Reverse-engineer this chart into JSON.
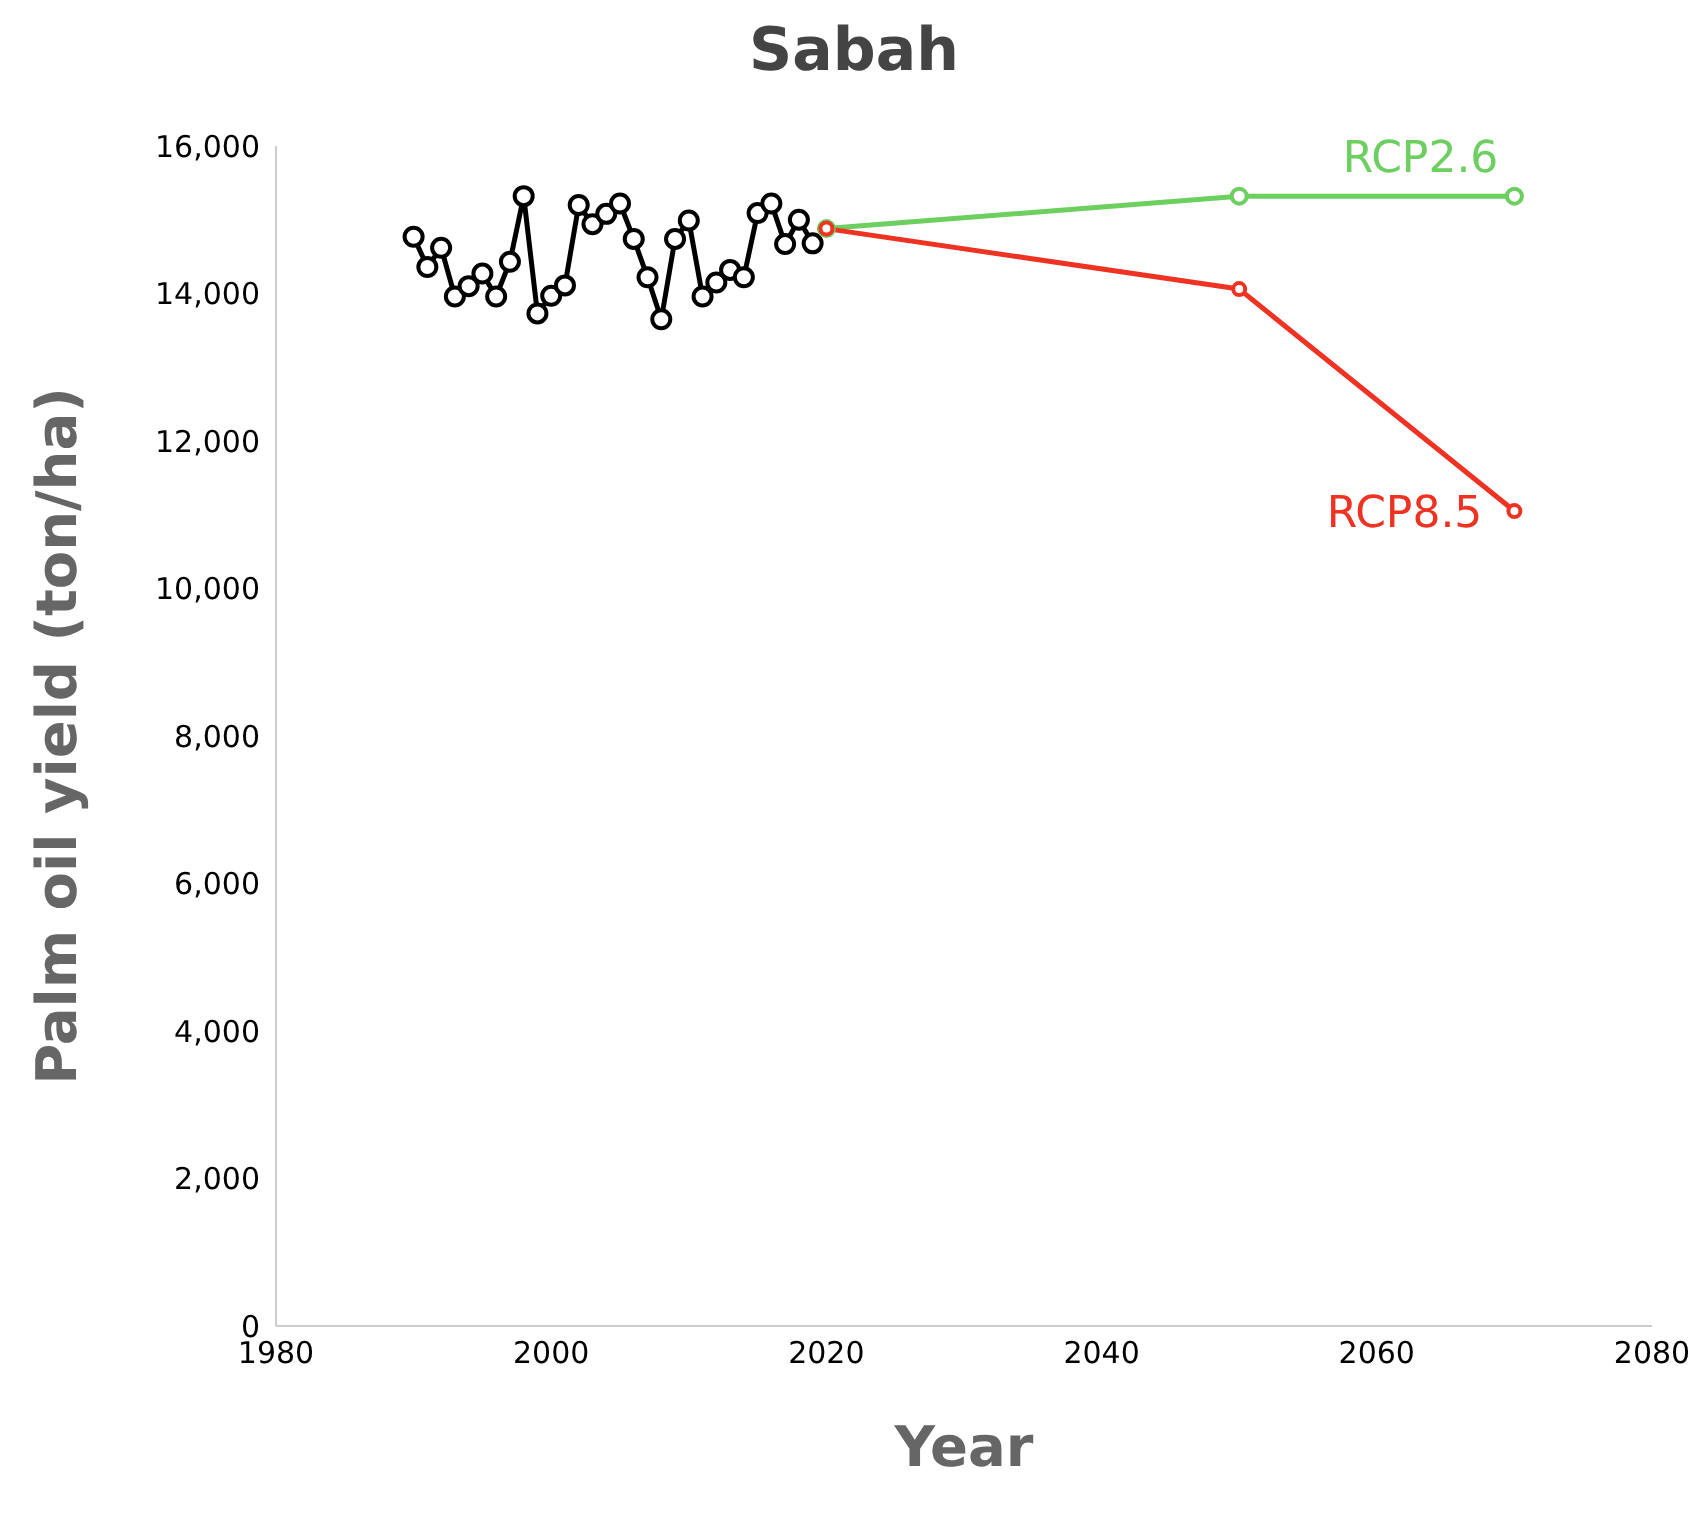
{
  "chart_data": {
    "type": "line",
    "title": "Sabah",
    "xlabel": "Year",
    "ylabel": "Palm oil yield (ton/ha)",
    "xlim": [
      1980,
      2080
    ],
    "xticks": [
      1980,
      2000,
      2020,
      2040,
      2060,
      2080
    ],
    "ylim": [
      0,
      16000
    ],
    "yticks": [
      0,
      {
        "value": 2000,
        "label": "2,000"
      },
      {
        "value": 4000,
        "label": "4,000"
      },
      {
        "value": 6000,
        "label": "6,000"
      },
      {
        "value": 8000,
        "label": "8,000"
      },
      {
        "value": 10000,
        "label": "10,000"
      },
      {
        "value": 12000,
        "label": "12,000"
      },
      {
        "value": 14000,
        "label": "14,000"
      },
      {
        "value": 16000,
        "label": "16,000"
      }
    ],
    "grid": false,
    "legend": false,
    "marker": "circle",
    "line_style": "solid",
    "series": [
      {
        "color": "#000000",
        "x": [
          1990,
          1991,
          1992,
          1993,
          1994,
          1995,
          1996,
          1997,
          1998,
          1999,
          2000,
          2001,
          2002,
          2003,
          2004,
          2005,
          2006,
          2007,
          2008,
          2009,
          2010,
          2011,
          2012,
          2013,
          2014,
          2015,
          2016,
          2017,
          2018,
          2019
        ],
        "values": [
          14770,
          14360,
          14620,
          13960,
          14100,
          14270,
          13960,
          14430,
          15320,
          13730,
          13970,
          14110,
          15200,
          14940,
          15080,
          15220,
          14740,
          14220,
          13650,
          14740,
          14990,
          13960,
          14150,
          14320,
          14220,
          15090,
          15220,
          14670,
          15000,
          14680
        ]
      },
      {
        "name": "RCP2.6",
        "color": "#6ccf5f",
        "x": [
          2020,
          2050,
          2070
        ],
        "values": [
          14880,
          15320,
          15320
        ]
      },
      {
        "name": "RCP8.5",
        "color": "#ee3322",
        "x": [
          2020,
          2050,
          2070
        ],
        "values": [
          14880,
          14060,
          11050
        ]
      }
    ]
  }
}
